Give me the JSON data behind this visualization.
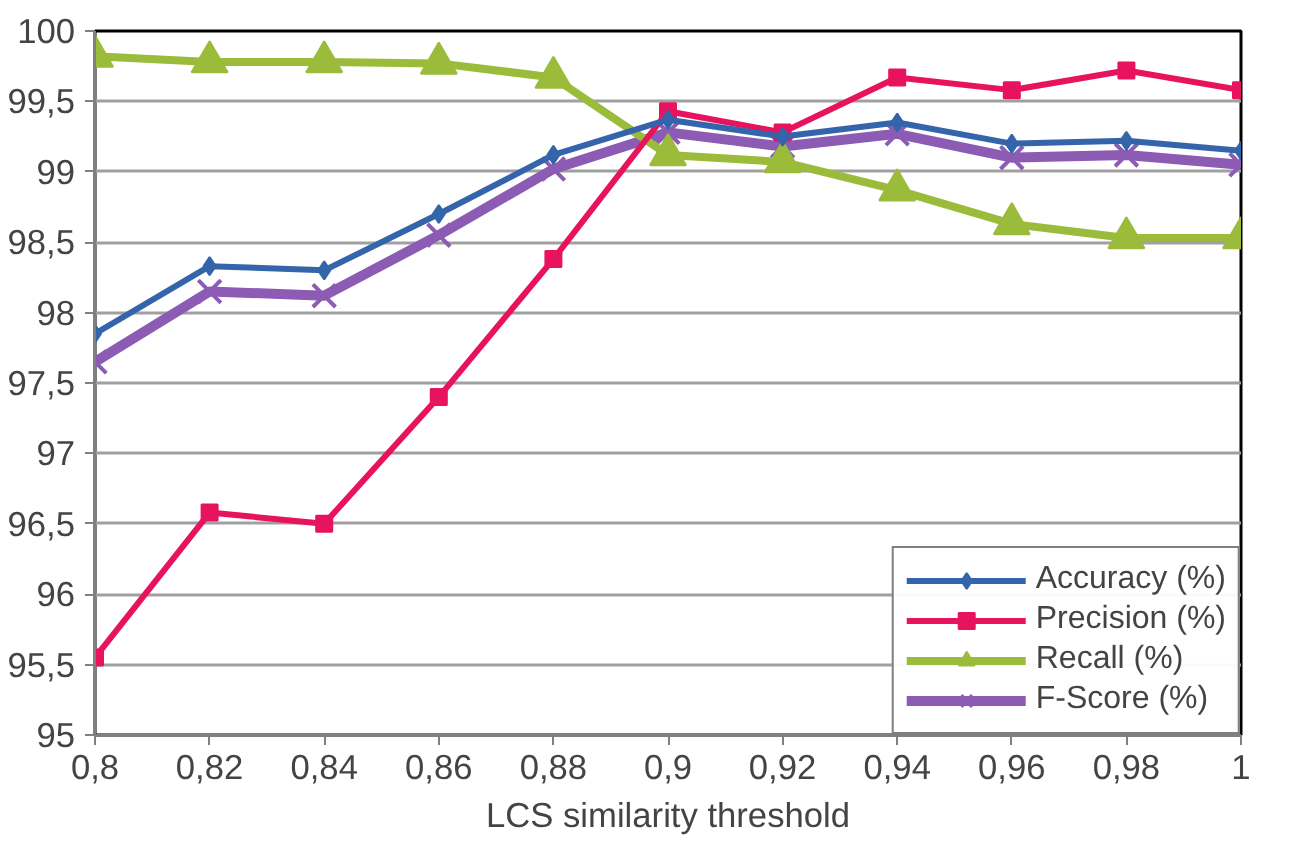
{
  "chart_data": {
    "type": "line",
    "xlabel": "LCS similarity threshold",
    "x": [
      0.8,
      0.82,
      0.84,
      0.86,
      0.88,
      0.9,
      0.92,
      0.94,
      0.96,
      0.98,
      1
    ],
    "series": [
      {
        "name": "Accuracy (%)",
        "color": "#3465aa",
        "marker": "diamond",
        "values": [
          97.85,
          98.33,
          98.3,
          98.7,
          99.12,
          99.37,
          99.25,
          99.35,
          99.2,
          99.22,
          99.15
        ]
      },
      {
        "name": "Precision (%)",
        "color": "#e8135e",
        "marker": "square",
        "values": [
          95.55,
          96.58,
          96.5,
          97.4,
          98.38,
          99.43,
          99.28,
          99.67,
          99.58,
          99.72,
          99.58
        ]
      },
      {
        "name": "Recall (%)",
        "color": "#9bbb3b",
        "marker": "triangle",
        "values": [
          99.82,
          99.78,
          99.78,
          99.77,
          99.67,
          99.12,
          99.07,
          98.87,
          98.63,
          98.53,
          98.53
        ]
      },
      {
        "name": "F-Score (%)",
        "color": "#8c5bb4",
        "marker": "cross",
        "values": [
          97.65,
          98.15,
          98.12,
          98.55,
          99.02,
          99.28,
          99.18,
          99.27,
          99.1,
          99.12,
          99.05
        ]
      }
    ],
    "xlim": [
      0.8,
      1
    ],
    "xticks": [
      {
        "value": 0.8,
        "label": "0,8"
      },
      {
        "value": 0.82,
        "label": "0,82"
      },
      {
        "value": 0.84,
        "label": "0,84"
      },
      {
        "value": 0.86,
        "label": "0,86"
      },
      {
        "value": 0.88,
        "label": "0,88"
      },
      {
        "value": 0.9,
        "label": "0,9"
      },
      {
        "value": 0.92,
        "label": "0,92"
      },
      {
        "value": 0.94,
        "label": "0,94"
      },
      {
        "value": 0.96,
        "label": "0,96"
      },
      {
        "value": 0.98,
        "label": "0,98"
      },
      {
        "value": 1,
        "label": "1"
      }
    ],
    "ylim": [
      95,
      100
    ],
    "yticks": [
      95,
      {
        "value": 95.5,
        "label": "95,5"
      },
      96,
      {
        "value": 96.5,
        "label": "96,5"
      },
      97,
      {
        "value": 97.5,
        "label": "97,5"
      },
      98,
      {
        "value": 98.5,
        "label": "98,5"
      },
      99,
      {
        "value": 99.5,
        "label": "99,5"
      },
      100
    ],
    "grid": "y",
    "legend": "bottom right",
    "line_style": "solid"
  }
}
